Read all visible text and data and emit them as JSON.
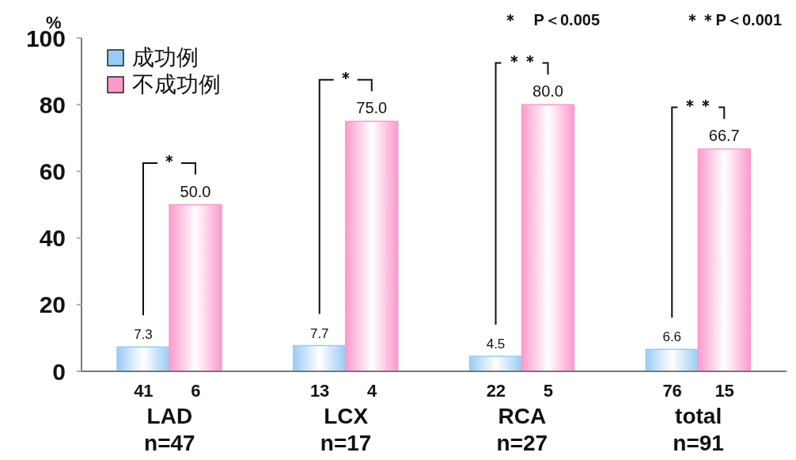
{
  "chart_data": {
    "type": "bar",
    "ylabel": "%",
    "categories": [
      "LAD\nn=47",
      "LCX\nn=17",
      "RCA\nn=27",
      "total\nn=91"
    ],
    "series": [
      {
        "name": "成功例",
        "color": "#99ccf5",
        "values": [
          7.3,
          7.7,
          4.5,
          6.6
        ],
        "value_labels": [
          "7.3",
          "7.7",
          "4.5",
          "6.6"
        ]
      },
      {
        "name": "不成功例",
        "color": "#ff99cc",
        "values": [
          50.0,
          75.0,
          80.0,
          66.7
        ],
        "value_labels": [
          "50.0",
          "75.0",
          "80.0",
          "66.7"
        ]
      }
    ],
    "ylim": [
      0,
      100
    ],
    "yticks": [
      0,
      20,
      40,
      60,
      80,
      100
    ],
    "legend": "top left",
    "annotations": [
      "＊　P＜0.005",
      "＊＊P＜0.001",
      "＊",
      "＊",
      "＊＊",
      "＊＊",
      "41",
      "6",
      "13",
      "4",
      "22",
      "5",
      "76",
      "15"
    ]
  }
}
